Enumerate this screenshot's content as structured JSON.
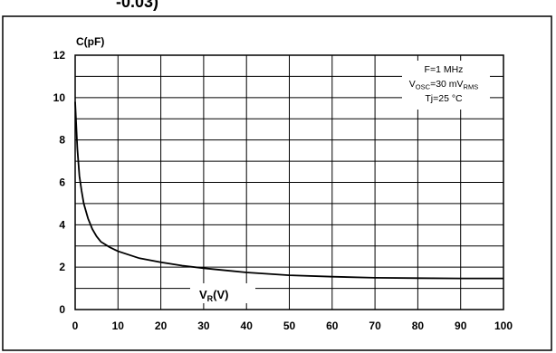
{
  "heading_fragment": "-0.03)",
  "chart_data": {
    "type": "line",
    "title": "",
    "xlabel": "V",
    "xlabel_sub": "R",
    "xlabel_unit": "(V)",
    "ylabel": "C(pF)",
    "xlim": [
      0,
      100
    ],
    "ylim": [
      0,
      12
    ],
    "x_ticks": [
      "0",
      "10",
      "20",
      "30",
      "40",
      "50",
      "60",
      "70",
      "80",
      "90",
      "100"
    ],
    "y_ticks": [
      "0",
      "2",
      "4",
      "6",
      "8",
      "10",
      "12"
    ],
    "grid": true,
    "conditions": {
      "freq": "F=1 MHz",
      "vosc_main": "V",
      "vosc_sub": "OSC",
      "vosc_val": "=30 mV",
      "vosc_unit_sub": "RMS",
      "tj": "Tj=25 °C"
    },
    "series": [
      {
        "x": [
          0,
          0.5,
          1,
          1.5,
          2,
          3,
          4,
          5,
          6,
          8,
          10,
          15,
          20,
          25,
          30,
          40,
          50,
          60,
          70,
          80,
          90,
          100
        ],
        "y": [
          9.8,
          7.6,
          6.3,
          5.6,
          5.0,
          4.3,
          3.8,
          3.45,
          3.2,
          2.95,
          2.75,
          2.42,
          2.23,
          2.07,
          1.95,
          1.75,
          1.62,
          1.55,
          1.5,
          1.48,
          1.47,
          1.47
        ]
      }
    ]
  },
  "colors": {
    "line": "#000000",
    "grid": "#000000",
    "frame": "#000000",
    "background": "#ffffff"
  }
}
